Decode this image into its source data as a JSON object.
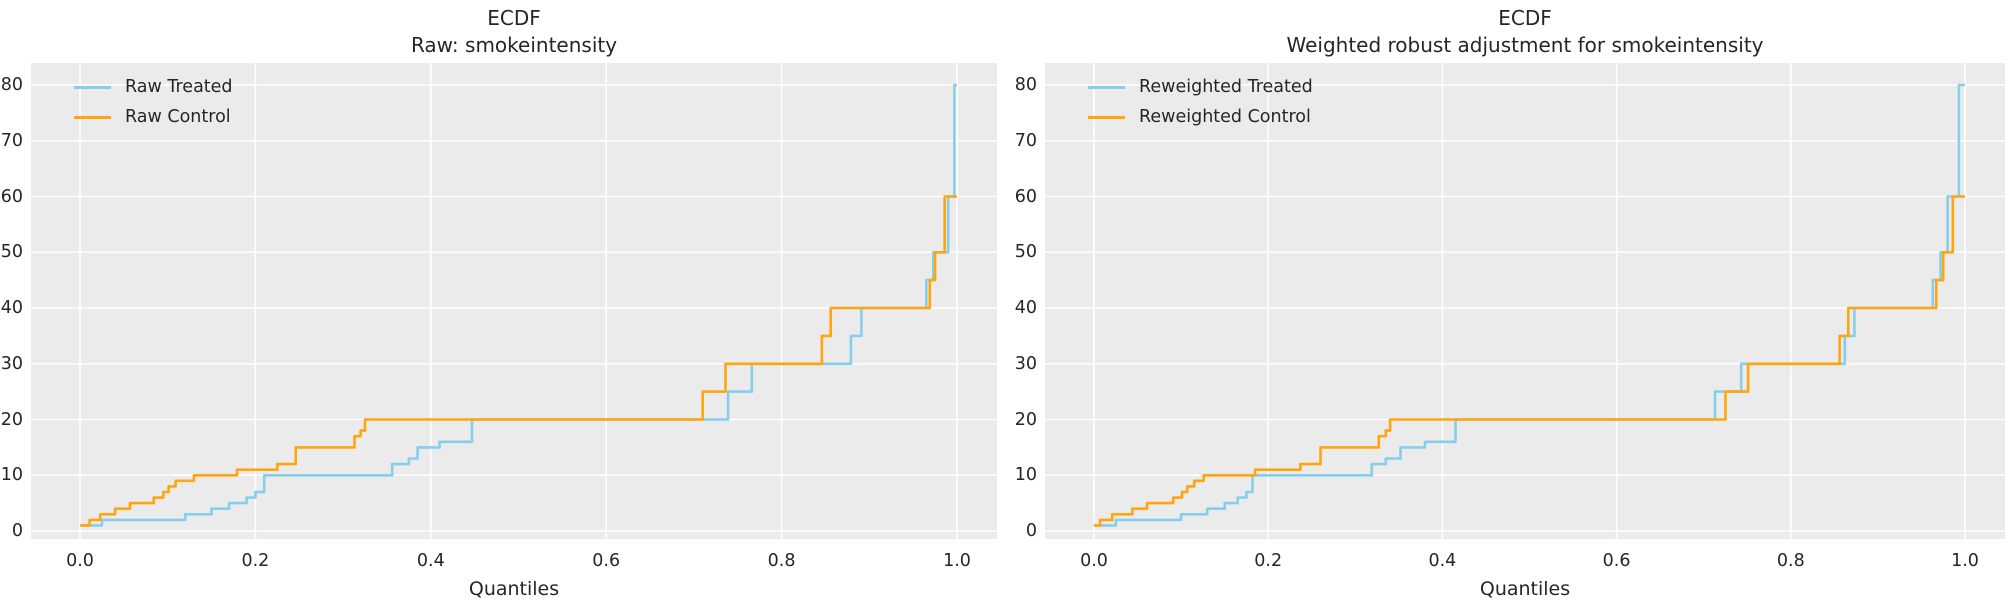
{
  "figure": {
    "background": "#ffffff",
    "axes_background": "#ebebeb",
    "grid_color": "#ffffff",
    "text_color": "#262626",
    "treated_color": "#87ceeb",
    "control_color": "#ffa510"
  },
  "chart_data": [
    {
      "type": "line",
      "style": "quantile-step",
      "title": "ECDF",
      "subtitle": "Raw: smokeintensity",
      "xlabel": "Quantiles",
      "xlim": [
        0.0,
        1.0
      ],
      "ylim": [
        0,
        80
      ],
      "grid": true,
      "legend_position": "upper-left",
      "x_ticks": [
        "0.0",
        "0.2",
        "0.4",
        "0.6",
        "0.8",
        "1.0"
      ],
      "x_tick_values": [
        0,
        0.2,
        0.4,
        0.6,
        0.8,
        1.0
      ],
      "y_ticks": [
        "0",
        "10",
        "20",
        "30",
        "40",
        "50",
        "60",
        "70",
        "80"
      ],
      "y_tick_values": [
        0,
        10,
        20,
        30,
        40,
        50,
        60,
        70,
        80
      ],
      "series": [
        {
          "name": "Raw Treated",
          "color": "#87ceeb",
          "step_points": [
            [
              0,
              1
            ],
            [
              0.025,
              2
            ],
            [
              0.12,
              3
            ],
            [
              0.15,
              4
            ],
            [
              0.17,
              5
            ],
            [
              0.19,
              6
            ],
            [
              0.2,
              7
            ],
            [
              0.21,
              10
            ],
            [
              0.356,
              12
            ],
            [
              0.375,
              13
            ],
            [
              0.385,
              15
            ],
            [
              0.41,
              16
            ],
            [
              0.447,
              20
            ],
            [
              0.739,
              25
            ],
            [
              0.766,
              30
            ],
            [
              0.879,
              35
            ],
            [
              0.891,
              40
            ],
            [
              0.965,
              45
            ],
            [
              0.973,
              50
            ],
            [
              0.99,
              60
            ],
            [
              0.997,
              80
            ],
            [
              1,
              80
            ]
          ]
        },
        {
          "name": "Raw Control",
          "color": "#ffa510",
          "step_points": [
            [
              0,
              1
            ],
            [
              0.011,
              2
            ],
            [
              0.023,
              3
            ],
            [
              0.04,
              4
            ],
            [
              0.057,
              5
            ],
            [
              0.084,
              6
            ],
            [
              0.095,
              7
            ],
            [
              0.101,
              8
            ],
            [
              0.109,
              9
            ],
            [
              0.13,
              10
            ],
            [
              0.179,
              11
            ],
            [
              0.225,
              12
            ],
            [
              0.246,
              15
            ],
            [
              0.313,
              17
            ],
            [
              0.32,
              18
            ],
            [
              0.325,
              20
            ],
            [
              0.71,
              25
            ],
            [
              0.736,
              30
            ],
            [
              0.846,
              35
            ],
            [
              0.856,
              40
            ],
            [
              0.969,
              45
            ],
            [
              0.975,
              50
            ],
            [
              0.986,
              60
            ],
            [
              1,
              60
            ]
          ]
        }
      ]
    },
    {
      "type": "line",
      "style": "quantile-step",
      "title": "ECDF",
      "subtitle": "Weighted robust adjustment for smokeintensity",
      "xlabel": "Quantiles",
      "xlim": [
        0.0,
        1.0
      ],
      "ylim": [
        0,
        80
      ],
      "grid": true,
      "legend_position": "upper-left",
      "x_ticks": [
        "0.0",
        "0.2",
        "0.4",
        "0.6",
        "0.8",
        "1.0"
      ],
      "x_tick_values": [
        0,
        0.2,
        0.4,
        0.6,
        0.8,
        1.0
      ],
      "y_ticks": [
        "0",
        "10",
        "20",
        "30",
        "40",
        "50",
        "60",
        "70",
        "80"
      ],
      "y_tick_values": [
        0,
        10,
        20,
        30,
        40,
        50,
        60,
        70,
        80
      ],
      "series": [
        {
          "name": "Reweighted Treated",
          "color": "#87ceeb",
          "step_points": [
            [
              0,
              1
            ],
            [
              0.025,
              2
            ],
            [
              0.1,
              3
            ],
            [
              0.13,
              4
            ],
            [
              0.15,
              5
            ],
            [
              0.165,
              6
            ],
            [
              0.175,
              7
            ],
            [
              0.182,
              10
            ],
            [
              0.319,
              12
            ],
            [
              0.335,
              13
            ],
            [
              0.352,
              15
            ],
            [
              0.38,
              16
            ],
            [
              0.415,
              20
            ],
            [
              0.713,
              25
            ],
            [
              0.743,
              30
            ],
            [
              0.862,
              35
            ],
            [
              0.873,
              40
            ],
            [
              0.963,
              45
            ],
            [
              0.972,
              50
            ],
            [
              0.98,
              60
            ],
            [
              0.993,
              80
            ],
            [
              1,
              80
            ]
          ]
        },
        {
          "name": "Reweighted Control",
          "color": "#ffa510",
          "step_points": [
            [
              0,
              1
            ],
            [
              0.007,
              2
            ],
            [
              0.021,
              3
            ],
            [
              0.044,
              4
            ],
            [
              0.061,
              5
            ],
            [
              0.091,
              6
            ],
            [
              0.101,
              7
            ],
            [
              0.107,
              8
            ],
            [
              0.115,
              9
            ],
            [
              0.126,
              10
            ],
            [
              0.185,
              11
            ],
            [
              0.237,
              12
            ],
            [
              0.26,
              15
            ],
            [
              0.327,
              17
            ],
            [
              0.335,
              18
            ],
            [
              0.34,
              20
            ],
            [
              0.725,
              25
            ],
            [
              0.751,
              30
            ],
            [
              0.856,
              35
            ],
            [
              0.866,
              40
            ],
            [
              0.967,
              45
            ],
            [
              0.975,
              50
            ],
            [
              0.986,
              60
            ],
            [
              1,
              60
            ]
          ]
        }
      ]
    }
  ]
}
